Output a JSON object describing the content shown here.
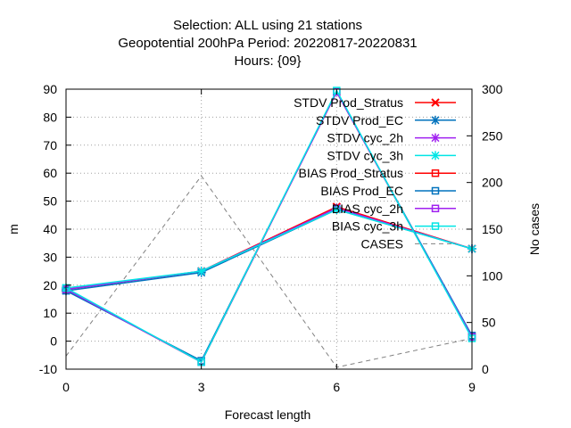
{
  "title_lines": [
    "Selection: ALL using    21 stations",
    "Geopotential 200hPa   Period: 20220817-20220831",
    "Hours: {09}"
  ],
  "chart_data": {
    "type": "line",
    "title": "Selection: ALL using    21 stations / Geopotential 200hPa   Period: 20220817-20220831 / Hours: {09}",
    "xlabel": "Forecast length",
    "ylabel": "m",
    "y2label": "No cases",
    "x": [
      0,
      3,
      6,
      9
    ],
    "xticks": [
      "0",
      "3",
      "6",
      "9"
    ],
    "ylim": [
      -10,
      90
    ],
    "yticks": [
      "-10",
      "0",
      "10",
      "20",
      "30",
      "40",
      "50",
      "60",
      "70",
      "80",
      "90"
    ],
    "y2lim": [
      0,
      300
    ],
    "y2ticks": [
      "0",
      "50",
      "100",
      "150",
      "200",
      "250",
      "300"
    ],
    "grid": true,
    "legend_position": "top-right",
    "series": [
      {
        "name": "STDV Prod_Stratus",
        "axis": "y1",
        "color": "#ff0000",
        "marker": "x",
        "values": [
          18.5,
          25.0,
          48.0,
          33.0
        ]
      },
      {
        "name": "STDV Prod_EC",
        "axis": "y1",
        "color": "#0072bd",
        "marker": "star",
        "values": [
          18.0,
          24.5,
          47.0,
          33.0
        ]
      },
      {
        "name": "STDV cyc_2h",
        "axis": "y1",
        "color": "#a020f0",
        "marker": "star",
        "values": [
          18.5,
          25.0,
          47.5,
          33.0
        ]
      },
      {
        "name": "STDV cyc_3h",
        "axis": "y1",
        "color": "#00e5e5",
        "marker": "star",
        "values": [
          19.0,
          25.0,
          47.0,
          33.0
        ]
      },
      {
        "name": "BIAS Prod_Stratus",
        "axis": "y1",
        "color": "#ff0000",
        "marker": "square",
        "values": [
          18.5,
          -7.5,
          89.0,
          1.5
        ]
      },
      {
        "name": "BIAS Prod_EC",
        "axis": "y1",
        "color": "#0072bd",
        "marker": "square",
        "values": [
          18.0,
          -7.0,
          89.0,
          2.0
        ]
      },
      {
        "name": "BIAS cyc_2h",
        "axis": "y1",
        "color": "#a020f0",
        "marker": "square",
        "values": [
          18.5,
          -7.5,
          89.0,
          1.5
        ]
      },
      {
        "name": "BIAS cyc_3h",
        "axis": "y1",
        "color": "#00e5e5",
        "marker": "square",
        "values": [
          19.0,
          -7.5,
          89.5,
          1.0
        ]
      },
      {
        "name": "CASES",
        "axis": "y2",
        "color": "#808080",
        "marker": "none",
        "dashed": true,
        "values": [
          14,
          207,
          2,
          33
        ]
      }
    ]
  }
}
